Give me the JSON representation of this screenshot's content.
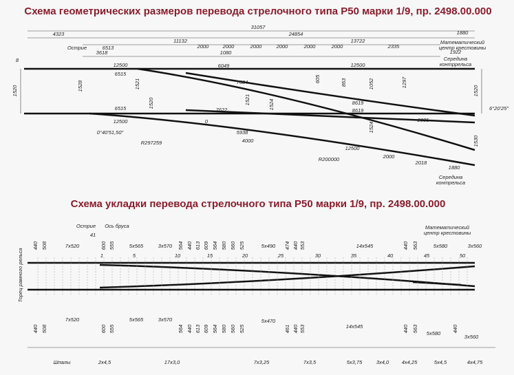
{
  "geometry": {
    "title": "Схема геометрических размеров перевода стрелочного типа Р50 марки 1/9, пр. 2498.00.000",
    "labels": [
      "31057",
      "4323",
      "24854",
      "1880",
      "11132",
      "13722",
      "Математический",
      "центр крестовины",
      "Острие",
      "6513",
      "2000",
      "2000",
      "2000",
      "2000",
      "2000",
      "2000",
      "2335",
      "1922",
      "3618",
      "1080",
      "8",
      "12500",
      "6049",
      "12500",
      "Середина",
      "контррельса",
      "6515",
      "7684",
      "8619",
      "8619",
      "6515",
      "7622",
      "12500",
      "0",
      "0°40'51,50\"",
      "5938",
      "R297259",
      "4000",
      "12500",
      "R200000",
      "2000",
      "2018",
      "1880",
      "2085",
      "6°20'25\"",
      "Середина",
      "контрельса",
      "1520",
      "1528",
      "1521",
      "1520",
      "1521",
      "1524",
      "1524",
      "1297",
      "1520",
      "1530",
      "605",
      "863",
      "1052"
    ]
  },
  "layout_plan": {
    "title": "Схема укладки перевода стрелочного типа Р50 марки 1/9, пр. 2498.00.000",
    "labels": [
      "Острие",
      "Ось бруса",
      "41",
      "7x520",
      "5x565",
      "3x570",
      "5x490",
      "14x545",
      "5x580",
      "3x560",
      "Математический",
      "центр крестовины",
      "1",
      "5",
      "10",
      "15",
      "20",
      "25",
      "30",
      "35",
      "40",
      "45",
      "50",
      "7x520",
      "5x565",
      "3x570",
      "5x470",
      "14x545",
      "5x580",
      "3x560",
      "Торец рамного рельса",
      "440",
      "508",
      "600",
      "555",
      "564",
      "440",
      "613",
      "609",
      "564",
      "580",
      "560",
      "525",
      "474",
      "440",
      "553",
      "440",
      "563",
      "440",
      "508",
      "600",
      "555",
      "564",
      "440",
      "613",
      "609",
      "564",
      "580",
      "560",
      "525",
      "461",
      "440",
      "553",
      "440",
      "563",
      "440"
    ],
    "footer": [
      "Шпалы",
      "2x4,5",
      "17x3,0",
      "7x3,25",
      "7x3,5",
      "5x3,75",
      "3x4,0",
      "4x4,25",
      "5x4,5",
      "4x4,75"
    ]
  }
}
